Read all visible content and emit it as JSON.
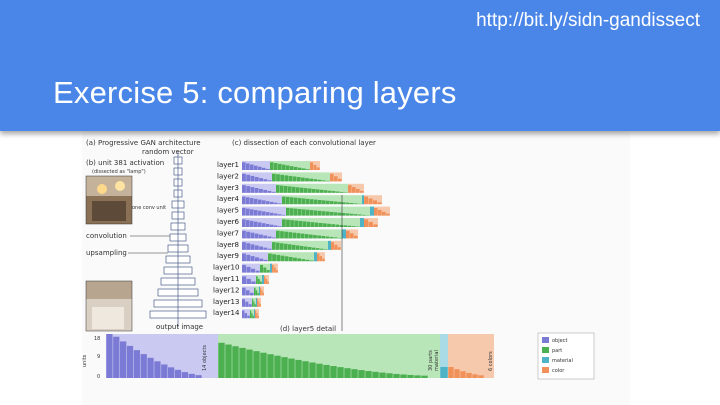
{
  "header": {
    "url": "http://bit.ly/sidn-gandissect",
    "title": "Exercise 5: comparing layers"
  },
  "figure": {
    "panel_a_title": "(a) Progressive GAN architecture",
    "random_vector": "random vector",
    "panel_b_title": "(b) unit 381 activation",
    "panel_b_sub": "(dissected as \"lamp\")",
    "one_conv_unit": "one conv unit",
    "convolution": "convolution",
    "upsampling": "upsampling",
    "output_image": "output image",
    "panel_c_title": "(c) dissection of each convolutional layer",
    "panel_d_title": "(d) layer5 detail",
    "layers": [
      "layer1",
      "layer2",
      "layer3",
      "layer4",
      "layer5",
      "layer6",
      "layer7",
      "layer8",
      "layer9",
      "layer10",
      "layer11",
      "layer12",
      "layer13",
      "layer14"
    ],
    "y_axis_label": "units",
    "y_ticks": [
      "18",
      "9",
      "0"
    ],
    "group_labels": [
      "14 objects",
      "30 parts",
      "6 colors"
    ],
    "group_label_material": "material",
    "legend": [
      {
        "label": "object",
        "color": "#7b7bd6"
      },
      {
        "label": "part",
        "color": "#4caf50"
      },
      {
        "label": "material",
        "color": "#4fb3c6"
      },
      {
        "label": "color",
        "color": "#f0915a"
      }
    ],
    "colors": {
      "object": "#7b7bd6",
      "object_bg": "#c9c9f2",
      "part": "#4caf50",
      "part_bg": "#b9e6b9",
      "material": "#4fb3c6",
      "color": "#f0915a",
      "color_bg": "#f6c9ad"
    }
  }
}
